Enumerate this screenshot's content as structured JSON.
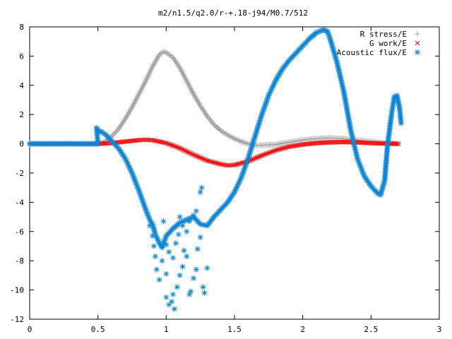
{
  "chart_data": {
    "type": "scatter",
    "title": "m2/n1.5/q2.0/r-+.18-j94/M0.7/512",
    "xlabel": "",
    "ylabel": "",
    "xlim": [
      0,
      3
    ],
    "ylim": [
      -12,
      8
    ],
    "x_ticks": [
      {
        "value": 0,
        "label": "0"
      },
      {
        "value": 0.5,
        "label": "0.5"
      },
      {
        "value": 1,
        "label": "1"
      },
      {
        "value": 1.5,
        "label": "1.5"
      },
      {
        "value": 2,
        "label": "2"
      },
      {
        "value": 2.5,
        "label": "2.5"
      },
      {
        "value": 3,
        "label": "3"
      }
    ],
    "y_ticks": [
      {
        "value": -12,
        "label": "-12"
      },
      {
        "value": -10,
        "label": "-10"
      },
      {
        "value": -8,
        "label": "-8"
      },
      {
        "value": -6,
        "label": "-6"
      },
      {
        "value": -4,
        "label": "-4"
      },
      {
        "value": -2,
        "label": "-2"
      },
      {
        "value": 0,
        "label": "0"
      },
      {
        "value": 2,
        "label": "2"
      },
      {
        "value": 4,
        "label": "4"
      },
      {
        "value": 6,
        "label": "6"
      },
      {
        "value": 8,
        "label": "8"
      }
    ],
    "grid": false,
    "legend_position": "top-right",
    "series": [
      {
        "name": "R stress/E",
        "marker": "plus",
        "color": "#a0a0a0",
        "points": [
          [
            0,
            0
          ],
          [
            0.5,
            0
          ],
          [
            0.55,
            0.15
          ],
          [
            0.6,
            0.5
          ],
          [
            0.65,
            1.0
          ],
          [
            0.7,
            1.7
          ],
          [
            0.75,
            2.5
          ],
          [
            0.8,
            3.4
          ],
          [
            0.85,
            4.3
          ],
          [
            0.9,
            5.3
          ],
          [
            0.95,
            6.1
          ],
          [
            0.98,
            6.3
          ],
          [
            1.0,
            6.25
          ],
          [
            1.05,
            5.9
          ],
          [
            1.1,
            5.2
          ],
          [
            1.15,
            4.3
          ],
          [
            1.2,
            3.4
          ],
          [
            1.25,
            2.6
          ],
          [
            1.3,
            1.9
          ],
          [
            1.35,
            1.3
          ],
          [
            1.4,
            0.9
          ],
          [
            1.45,
            0.6
          ],
          [
            1.5,
            0.35
          ],
          [
            1.55,
            0.15
          ],
          [
            1.6,
            0.0
          ],
          [
            1.65,
            -0.1
          ],
          [
            1.7,
            -0.1
          ],
          [
            1.8,
            -0.05
          ],
          [
            1.9,
            0.1
          ],
          [
            2.0,
            0.25
          ],
          [
            2.1,
            0.35
          ],
          [
            2.2,
            0.4
          ],
          [
            2.3,
            0.35
          ],
          [
            2.4,
            0.25
          ],
          [
            2.5,
            0.15
          ],
          [
            2.6,
            0.05
          ],
          [
            2.7,
            0.0
          ]
        ]
      },
      {
        "name": "G work/E",
        "marker": "cross",
        "color": "#ff0000",
        "points": [
          [
            0,
            0
          ],
          [
            0.5,
            0
          ],
          [
            0.6,
            0.05
          ],
          [
            0.7,
            0.15
          ],
          [
            0.8,
            0.25
          ],
          [
            0.85,
            0.28
          ],
          [
            0.9,
            0.25
          ],
          [
            1.0,
            0.05
          ],
          [
            1.1,
            -0.3
          ],
          [
            1.2,
            -0.75
          ],
          [
            1.3,
            -1.15
          ],
          [
            1.4,
            -1.4
          ],
          [
            1.45,
            -1.48
          ],
          [
            1.5,
            -1.45
          ],
          [
            1.6,
            -1.2
          ],
          [
            1.7,
            -0.8
          ],
          [
            1.8,
            -0.45
          ],
          [
            1.9,
            -0.2
          ],
          [
            2.0,
            -0.05
          ],
          [
            2.1,
            0.05
          ],
          [
            2.2,
            0.1
          ],
          [
            2.3,
            0.12
          ],
          [
            2.4,
            0.1
          ],
          [
            2.5,
            0.05
          ],
          [
            2.6,
            0.02
          ],
          [
            2.7,
            0.0
          ]
        ]
      },
      {
        "name": "Acoustic flux/E",
        "marker": "star",
        "color": "#0a84d8",
        "points": [
          [
            0,
            0
          ],
          [
            0.5,
            0
          ],
          [
            0.49,
            1.1
          ],
          [
            0.5,
            0.9
          ],
          [
            0.53,
            0.8
          ],
          [
            0.56,
            0.6
          ],
          [
            0.6,
            0.2
          ],
          [
            0.65,
            -0.3
          ],
          [
            0.7,
            -1.0
          ],
          [
            0.75,
            -2.0
          ],
          [
            0.8,
            -3.2
          ],
          [
            0.85,
            -4.5
          ],
          [
            0.88,
            -5.2
          ],
          [
            0.9,
            -5.5
          ],
          [
            0.92,
            -6.2
          ],
          [
            0.95,
            -6.8
          ],
          [
            0.97,
            -7.1
          ],
          [
            1.0,
            -6.3
          ],
          [
            1.05,
            -5.8
          ],
          [
            1.1,
            -5.4
          ],
          [
            1.15,
            -5.2
          ],
          [
            1.2,
            -5.0
          ],
          [
            1.25,
            -5.5
          ],
          [
            1.3,
            -5.6
          ],
          [
            1.35,
            -5.0
          ],
          [
            1.4,
            -4.5
          ],
          [
            1.45,
            -4.0
          ],
          [
            1.5,
            -3.3
          ],
          [
            1.55,
            -2.3
          ],
          [
            1.6,
            -1.0
          ],
          [
            1.65,
            0.5
          ],
          [
            1.7,
            2.0
          ],
          [
            1.75,
            3.3
          ],
          [
            1.8,
            4.3
          ],
          [
            1.85,
            5.1
          ],
          [
            1.9,
            5.7
          ],
          [
            1.95,
            6.2
          ],
          [
            2.0,
            6.7
          ],
          [
            2.05,
            7.2
          ],
          [
            2.1,
            7.6
          ],
          [
            2.15,
            7.8
          ],
          [
            2.18,
            7.7
          ],
          [
            2.2,
            7.2
          ],
          [
            2.25,
            5.6
          ],
          [
            2.3,
            3.6
          ],
          [
            2.35,
            1.0
          ],
          [
            2.4,
            -1.0
          ],
          [
            2.45,
            -2.2
          ],
          [
            2.5,
            -2.9
          ],
          [
            2.55,
            -3.4
          ],
          [
            2.57,
            -3.5
          ],
          [
            2.6,
            -2.5
          ],
          [
            2.62,
            -0.2
          ],
          [
            2.65,
            2.0
          ],
          [
            2.67,
            3.2
          ],
          [
            2.69,
            3.3
          ],
          [
            2.71,
            2.4
          ],
          [
            2.72,
            1.4
          ]
        ]
      },
      {
        "name": "",
        "legend": false,
        "marker": "star",
        "color": "#0a84d8",
        "points": [
          [
            0.88,
            -5.6
          ],
          [
            0.9,
            -6.3
          ],
          [
            0.91,
            -7.0
          ],
          [
            0.92,
            -7.7
          ],
          [
            0.93,
            -8.6
          ],
          [
            0.95,
            -9.3
          ],
          [
            0.97,
            -8.0
          ],
          [
            1.0,
            -8.9
          ],
          [
            1.0,
            -10.5
          ],
          [
            1.02,
            -11.0
          ],
          [
            1.04,
            -10.8
          ],
          [
            1.05,
            -10.3
          ],
          [
            1.06,
            -11.3
          ],
          [
            1.08,
            -9.8
          ],
          [
            1.1,
            -9.0
          ],
          [
            1.12,
            -8.4
          ],
          [
            1.13,
            -7.3
          ],
          [
            1.15,
            -7.7
          ],
          [
            1.17,
            -10.3
          ],
          [
            1.18,
            -10.1
          ],
          [
            1.2,
            -9.2
          ],
          [
            1.22,
            -8.6
          ],
          [
            1.23,
            -7.2
          ],
          [
            1.25,
            -6.4
          ],
          [
            1.27,
            -9.8
          ],
          [
            1.28,
            -10.2
          ],
          [
            1.3,
            -8.5
          ],
          [
            1.05,
            -7.8
          ],
          [
            1.07,
            -6.8
          ],
          [
            1.09,
            -6.2
          ],
          [
            1.1,
            -5.0
          ],
          [
            1.12,
            -5.6
          ],
          [
            1.15,
            -6.0
          ],
          [
            1.17,
            -5.3
          ],
          [
            1.2,
            -4.9
          ],
          [
            1.22,
            -4.6
          ],
          [
            1.25,
            -3.3
          ],
          [
            1.26,
            -3.0
          ],
          [
            0.98,
            -5.3
          ],
          [
            1.0,
            -6.9
          ],
          [
            1.02,
            -7.4
          ]
        ]
      }
    ]
  }
}
